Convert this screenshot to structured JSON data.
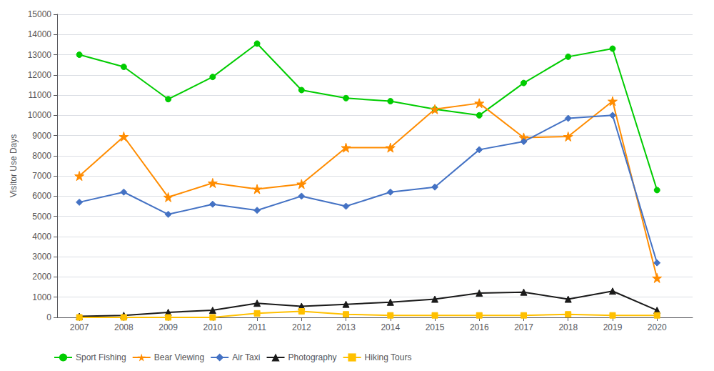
{
  "chart_data": {
    "type": "line",
    "ylabel": "Visitor Use Days",
    "x": [
      2007,
      2008,
      2009,
      2010,
      2011,
      2012,
      2013,
      2014,
      2015,
      2016,
      2017,
      2018,
      2019,
      2020
    ],
    "xlim": [
      2006.5,
      2020.8
    ],
    "xticks": [
      2007,
      2008,
      2009,
      2010,
      2011,
      2012,
      2013,
      2014,
      2015,
      2016,
      2017,
      2018,
      2019,
      2020
    ],
    "ylim": [
      0,
      15000
    ],
    "yticks": [
      0,
      1000,
      2000,
      3000,
      4000,
      5000,
      6000,
      7000,
      8000,
      9000,
      10000,
      11000,
      12000,
      13000,
      14000,
      15000
    ],
    "grid": true,
    "legend": "lower left",
    "series": [
      {
        "name": "Sport Fishing",
        "color": "#00cc00",
        "marker": "circle",
        "values": [
          13000,
          12400,
          10800,
          11900,
          13550,
          11250,
          10850,
          10700,
          10300,
          10000,
          11600,
          12900,
          13300,
          6300
        ]
      },
      {
        "name": "Bear Viewing",
        "color": "#ff8c00",
        "marker": "star",
        "values": [
          7000,
          8950,
          5950,
          6650,
          6350,
          6600,
          8400,
          8400,
          10300,
          10600,
          8900,
          8950,
          10700,
          1950
        ]
      },
      {
        "name": "Air Taxi",
        "color": "#4472c4",
        "marker": "diamond",
        "values": [
          5700,
          6200,
          5100,
          5600,
          5300,
          6000,
          5500,
          6200,
          6450,
          8300,
          8700,
          9850,
          10000,
          2700
        ]
      },
      {
        "name": "Photography",
        "color": "#1a1a1a",
        "marker": "triangle",
        "values": [
          50,
          100,
          250,
          350,
          700,
          550,
          650,
          750,
          900,
          1200,
          1250,
          900,
          1300,
          350
        ]
      },
      {
        "name": "Hiking Tours",
        "color": "#ffc000",
        "marker": "square",
        "values": [
          0,
          0,
          0,
          0,
          200,
          300,
          150,
          100,
          100,
          100,
          100,
          150,
          100,
          100
        ]
      }
    ]
  }
}
